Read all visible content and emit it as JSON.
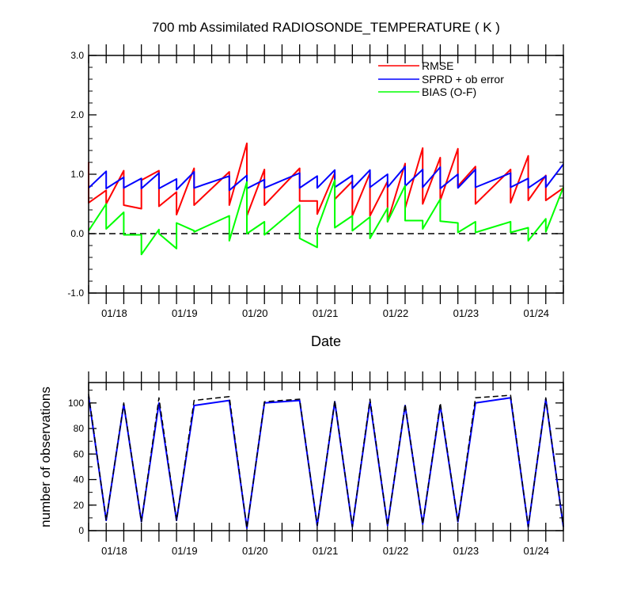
{
  "chart_data": [
    {
      "type": "line",
      "title": "700 mb Assimilated RADIOSONDE_TEMPERATURE ( K )",
      "xlabel": "Date",
      "ylabel": "",
      "ylim": [
        -1.0,
        3.0
      ],
      "yticks": [
        "-1.0",
        "0.0",
        "1.0",
        "2.0",
        "3.0"
      ],
      "xlim": [
        0,
        27
      ],
      "x_tick_labels": [
        {
          "x": 2,
          "label": "01/18"
        },
        {
          "x": 6,
          "label": "01/19"
        },
        {
          "x": 10,
          "label": "01/20"
        },
        {
          "x": 14,
          "label": "01/21"
        },
        {
          "x": 18,
          "label": "01/22"
        },
        {
          "x": 22,
          "label": "01/23"
        },
        {
          "x": 26,
          "label": "01/24"
        }
      ],
      "reference_line": {
        "y": 0.0,
        "style": "dashed"
      },
      "legend_placement": "top-right",
      "series": [
        {
          "name": "RMSE",
          "color": "#ff0000",
          "x": [
            0,
            0,
            1,
            1,
            2,
            2,
            3,
            3,
            4,
            4,
            5,
            5,
            6,
            6,
            8,
            8,
            9,
            9,
            10,
            10,
            12,
            12,
            13,
            13,
            14,
            14,
            15,
            15,
            16,
            16,
            17,
            17,
            18,
            18,
            19,
            19,
            20,
            20,
            21,
            21,
            22,
            22,
            24,
            24,
            25,
            25,
            26,
            26,
            27
          ],
          "y": [
            1.2,
            0.52,
            0.73,
            0.5,
            1.06,
            0.48,
            0.42,
            0.9,
            1.06,
            0.46,
            0.7,
            0.32,
            1.1,
            0.48,
            1.04,
            0.48,
            1.52,
            0.3,
            1.08,
            0.48,
            1.1,
            0.55,
            0.55,
            0.33,
            1.02,
            0.58,
            0.88,
            0.3,
            1.02,
            0.3,
            0.88,
            0.2,
            1.18,
            0.43,
            1.44,
            0.5,
            1.28,
            0.56,
            1.43,
            0.8,
            1.13,
            0.5,
            1.08,
            0.52,
            1.31,
            0.56,
            0.98,
            0.56,
            0.77
          ]
        },
        {
          "name": "SPRD + ob error",
          "color": "#0000ff",
          "x": [
            0,
            1,
            1,
            2,
            2,
            3,
            3,
            4,
            4,
            5,
            5,
            6,
            6,
            8,
            8,
            9,
            9,
            10,
            10,
            12,
            12,
            13,
            13,
            14,
            14,
            15,
            15,
            16,
            16,
            17,
            17,
            18,
            18,
            19,
            19,
            20,
            20,
            21,
            21,
            22,
            22,
            24,
            24,
            25,
            25,
            26,
            26,
            27
          ],
          "y": [
            0.77,
            1.05,
            0.76,
            0.95,
            0.77,
            0.93,
            0.76,
            1.02,
            0.76,
            0.92,
            0.74,
            1.04,
            0.77,
            0.97,
            0.73,
            0.98,
            0.76,
            0.91,
            0.77,
            1.02,
            0.77,
            0.97,
            0.77,
            1.07,
            0.78,
            0.98,
            0.76,
            1.07,
            0.78,
            1.0,
            0.78,
            1.13,
            0.8,
            1.08,
            0.78,
            1.12,
            0.76,
            1.0,
            0.77,
            1.08,
            0.78,
            1.02,
            0.78,
            0.93,
            0.77,
            0.97,
            0.78,
            1.17
          ]
        },
        {
          "name": "BIAS (O-F)",
          "color": "#00ff00",
          "x": [
            0,
            1,
            1,
            2,
            2,
            3,
            3,
            4,
            4,
            5,
            5,
            6,
            6,
            8,
            8,
            9,
            9,
            10,
            10,
            12,
            12,
            13,
            13,
            14,
            14,
            15,
            15,
            16,
            16,
            17,
            17,
            18,
            18,
            19,
            19,
            20,
            20,
            21,
            21,
            22,
            22,
            24,
            24,
            25,
            25,
            26,
            26,
            27
          ],
          "y": [
            0.05,
            0.5,
            0.08,
            0.36,
            -0.02,
            -0.02,
            -0.35,
            0.07,
            0.0,
            -0.25,
            0.18,
            0.05,
            0.03,
            0.3,
            -0.12,
            0.87,
            0.0,
            0.2,
            -0.02,
            0.48,
            -0.08,
            -0.23,
            0.08,
            0.9,
            0.1,
            0.3,
            0.05,
            0.28,
            -0.08,
            0.43,
            0.2,
            0.81,
            0.22,
            0.22,
            0.08,
            0.58,
            0.21,
            0.18,
            0.02,
            0.2,
            0.02,
            0.2,
            0.02,
            0.1,
            -0.12,
            0.25,
            0.03,
            0.78
          ]
        }
      ]
    },
    {
      "type": "line",
      "title": "",
      "xlabel": "",
      "ylabel": "number of observations",
      "ylim": [
        0,
        116
      ],
      "yticks": [
        "0",
        "20",
        "40",
        "60",
        "80",
        "100"
      ],
      "xlim": [
        0,
        27
      ],
      "x_tick_labels": [
        {
          "x": 2,
          "label": "01/18"
        },
        {
          "x": 6,
          "label": "01/19"
        },
        {
          "x": 10,
          "label": "01/20"
        },
        {
          "x": 14,
          "label": "01/21"
        },
        {
          "x": 18,
          "label": "01/22"
        },
        {
          "x": 22,
          "label": "01/23"
        },
        {
          "x": 26,
          "label": "01/24"
        }
      ],
      "series": [
        {
          "color": "#0000ff",
          "dash": "solid",
          "x": [
            0,
            1,
            2,
            3,
            4,
            5,
            6,
            8,
            9,
            10,
            12,
            13,
            14,
            15,
            16,
            17,
            18,
            19,
            20,
            21,
            22,
            24,
            25,
            26,
            27
          ],
          "y": [
            105,
            8,
            99,
            7,
            100,
            8,
            98,
            102,
            2,
            100,
            102,
            4,
            101,
            3,
            101,
            4,
            98,
            5,
            98,
            7,
            100,
            104,
            3,
            103,
            3
          ]
        },
        {
          "color": "#000000",
          "dash": "dashed",
          "x": [
            0,
            1,
            2,
            3,
            4,
            5,
            6,
            8,
            9,
            10,
            12,
            13,
            14,
            15,
            16,
            17,
            18,
            19,
            20,
            21,
            22,
            24,
            25,
            26,
            27
          ],
          "y": [
            107,
            8,
            100,
            7,
            104,
            8,
            102,
            105,
            2,
            101,
            103,
            4,
            102,
            3,
            103,
            4,
            99,
            5,
            100,
            7,
            104,
            106,
            3,
            104,
            3
          ]
        }
      ]
    }
  ]
}
